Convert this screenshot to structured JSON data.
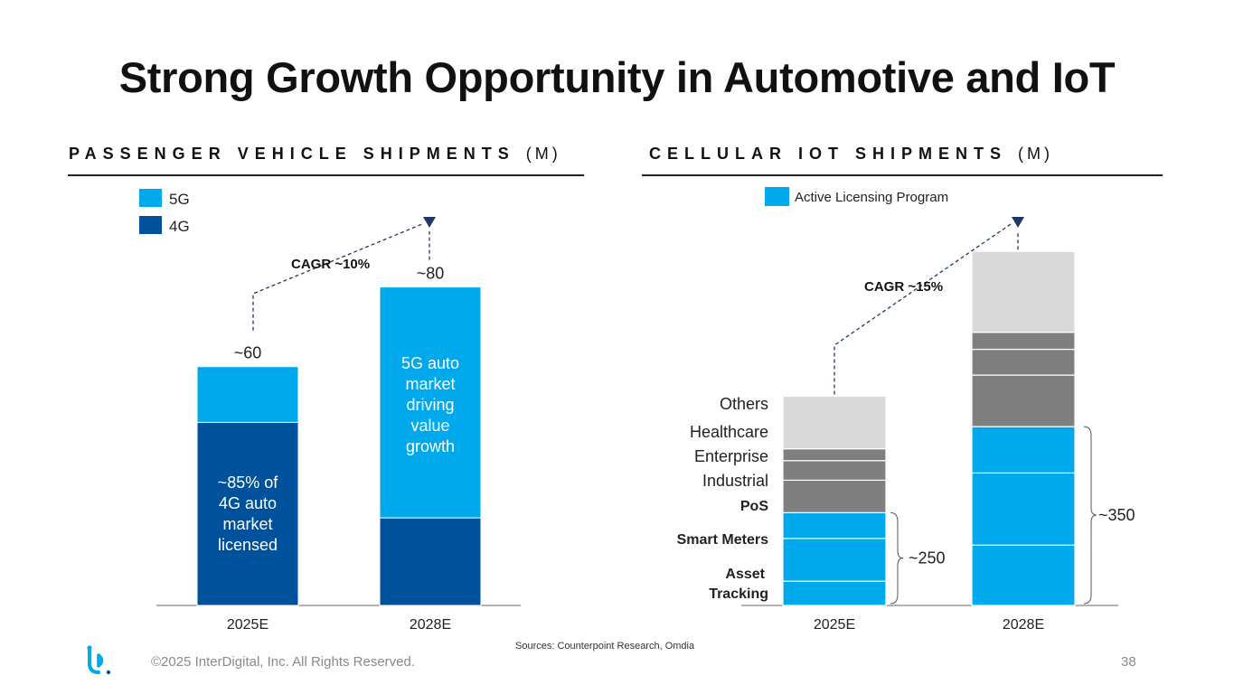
{
  "title": "Strong Growth Opportunity in Automotive and IoT",
  "colors": {
    "g5": "#00a8ec",
    "g4": "#00519b",
    "others": "#d9d9d9",
    "mid": "#7f7f7f",
    "arrow": "#1f3864"
  },
  "left_section": {
    "title": "PASSENGER VEHICLE SHIPMENTS",
    "unit": "(M)"
  },
  "right_section": {
    "title": "CELLULAR IOT SHIPMENTS",
    "unit": "(M)"
  },
  "chart_data": [
    {
      "type": "bar",
      "stacked": true,
      "title": "PASSENGER VEHICLE SHIPMENTS (M)",
      "categories": [
        "2025E",
        "2028E"
      ],
      "series": [
        {
          "name": "4G",
          "values": [
            46,
            22
          ]
        },
        {
          "name": "5G",
          "values": [
            14,
            58
          ]
        }
      ],
      "totals_labels": [
        "~60",
        "~80"
      ],
      "ylim": [
        0,
        84
      ],
      "legend": [
        "5G",
        "4G"
      ],
      "legend_position": "top-left",
      "annotations": {
        "cagr": "CAGR ~10%",
        "bar1_text": [
          "~85% of",
          "4G auto",
          "market",
          "licensed"
        ],
        "bar2_text": [
          "5G auto",
          "market",
          "driving",
          "value",
          "growth"
        ]
      }
    },
    {
      "type": "bar",
      "stacked": true,
      "title": "CELLULAR IOT SHIPMENTS (M)",
      "categories": [
        "2025E",
        "2028E"
      ],
      "series": [
        {
          "name": "Asset Tracking",
          "values": [
            47,
            117
          ]
        },
        {
          "name": "Smart Meters",
          "values": [
            83,
            140
          ]
        },
        {
          "name": "PoS",
          "values": [
            50,
            90
          ]
        },
        {
          "name": "Industrial",
          "values": [
            63,
            100
          ]
        },
        {
          "name": "Enterprise",
          "values": [
            38,
            50
          ]
        },
        {
          "name": "Healthcare",
          "values": [
            23,
            33
          ]
        },
        {
          "name": "Others",
          "values": [
            102,
            157
          ]
        }
      ],
      "bracket_labels": [
        "~250",
        "~350"
      ],
      "ylim": [
        0,
        700
      ],
      "legend": [
        "Active Licensing Program"
      ],
      "legend_position": "top-center",
      "annotations": {
        "cagr": "CAGR ~15%"
      }
    }
  ],
  "footer": {
    "copyright": "©2025 InterDigital, Inc. All Rights Reserved.",
    "sources": "Sources: Counterpoint Research, Omdia",
    "page": "38"
  }
}
